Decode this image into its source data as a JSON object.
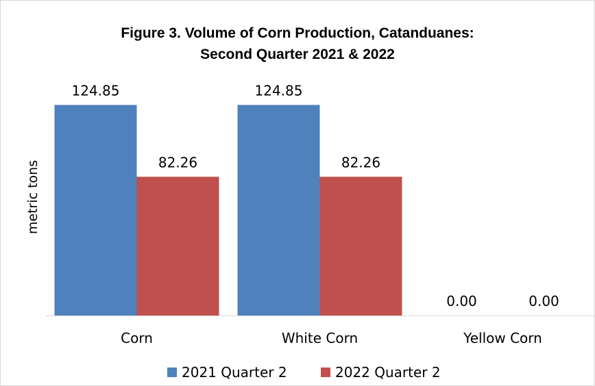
{
  "chart_data": {
    "type": "bar",
    "title_lines": [
      "Figure 3. Volume of Corn Production, Catanduanes:",
      "Second Quarter 2021 & 2022"
    ],
    "xlabel": "",
    "ylabel": "metric tons",
    "categories": [
      "Corn",
      "White Corn",
      "Yellow Corn"
    ],
    "series": [
      {
        "name": "2021 Quarter 2",
        "values": [
          124.85,
          124.85,
          0.0
        ],
        "labels": [
          "124.85",
          "124.85",
          "0.00"
        ],
        "color": "#4f81bd"
      },
      {
        "name": "2022 Quarter 2",
        "values": [
          82.26,
          82.26,
          0.0
        ],
        "labels": [
          "82.26",
          "82.26",
          "0.00"
        ],
        "color": "#c0504d"
      }
    ],
    "ylim": [
      0,
      127
    ],
    "grid": false,
    "data_labels": true,
    "legend_position": "bottom",
    "axis_color": "#d9d9d9"
  }
}
